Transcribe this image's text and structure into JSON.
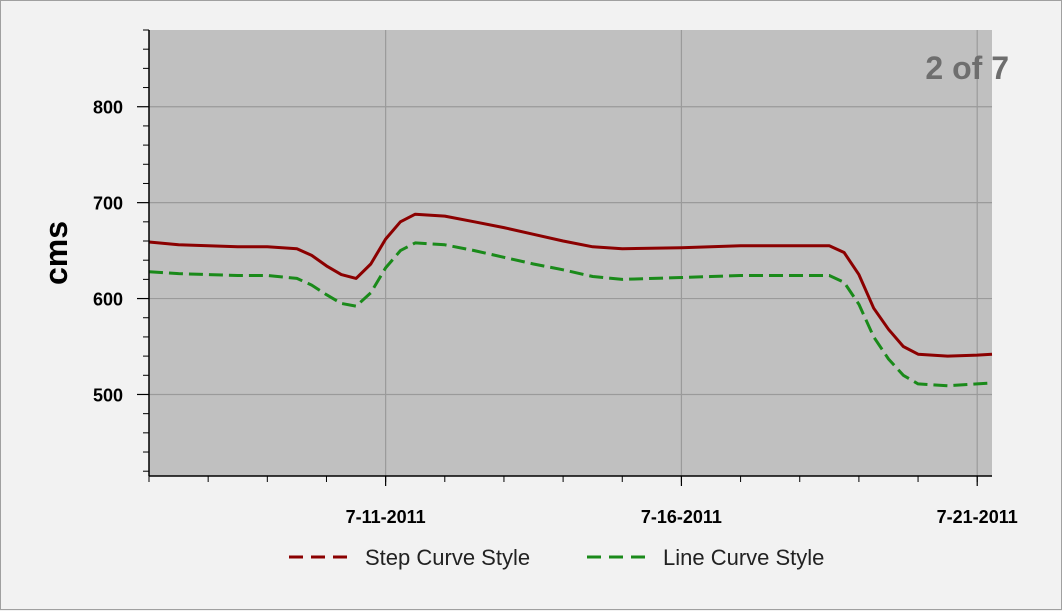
{
  "page_indicator": "2 of 7",
  "chart_data": {
    "type": "line",
    "title": "",
    "xlabel": "",
    "ylabel": "cms",
    "x_ticks": [
      "7-11-2011",
      "7-16-2011",
      "7-21-2011"
    ],
    "x_range": [
      "2011-07-07",
      "2011-07-21T06:00"
    ],
    "ylim": [
      415,
      880
    ],
    "y_ticks": [
      500,
      600,
      700,
      800
    ],
    "grid": true,
    "legend_position": "bottom",
    "series": [
      {
        "name": "Step Curve Style",
        "color": "#8b0000",
        "dash": "dashed-legend",
        "points": [
          [
            "2011-07-07",
            659
          ],
          [
            "2011-07-07T12:00",
            656
          ],
          [
            "2011-07-08",
            655
          ],
          [
            "2011-07-08T12:00",
            654
          ],
          [
            "2011-07-09",
            654
          ],
          [
            "2011-07-09T12:00",
            652
          ],
          [
            "2011-07-09T18:00",
            645
          ],
          [
            "2011-07-10",
            634
          ],
          [
            "2011-07-10T06:00",
            625
          ],
          [
            "2011-07-10T12:00",
            621
          ],
          [
            "2011-07-10T18:00",
            636
          ],
          [
            "2011-07-11",
            662
          ],
          [
            "2011-07-11T06:00",
            680
          ],
          [
            "2011-07-11T12:00",
            688
          ],
          [
            "2011-07-12",
            686
          ],
          [
            "2011-07-12T12:00",
            680
          ],
          [
            "2011-07-13",
            674
          ],
          [
            "2011-07-13T12:00",
            667
          ],
          [
            "2011-07-14",
            660
          ],
          [
            "2011-07-14T12:00",
            654
          ],
          [
            "2011-07-15",
            652
          ],
          [
            "2011-07-16",
            653
          ],
          [
            "2011-07-16T12:00",
            654
          ],
          [
            "2011-07-17",
            655
          ],
          [
            "2011-07-18",
            655
          ],
          [
            "2011-07-18T12:00",
            655
          ],
          [
            "2011-07-18T18:00",
            648
          ],
          [
            "2011-07-19",
            625
          ],
          [
            "2011-07-19T06:00",
            590
          ],
          [
            "2011-07-19T12:00",
            568
          ],
          [
            "2011-07-19T18:00",
            550
          ],
          [
            "2011-07-20",
            542
          ],
          [
            "2011-07-20T12:00",
            540
          ],
          [
            "2011-07-21",
            541
          ],
          [
            "2011-07-21T06:00",
            542
          ]
        ]
      },
      {
        "name": "Line Curve Style",
        "color": "#1a8a1a",
        "dash": "dashed",
        "points": [
          [
            "2011-07-07",
            628
          ],
          [
            "2011-07-07T12:00",
            626
          ],
          [
            "2011-07-08",
            625
          ],
          [
            "2011-07-08T12:00",
            624
          ],
          [
            "2011-07-09",
            624
          ],
          [
            "2011-07-09T12:00",
            621
          ],
          [
            "2011-07-09T18:00",
            614
          ],
          [
            "2011-07-10",
            604
          ],
          [
            "2011-07-10T06:00",
            595
          ],
          [
            "2011-07-10T12:00",
            592
          ],
          [
            "2011-07-10T18:00",
            606
          ],
          [
            "2011-07-11",
            632
          ],
          [
            "2011-07-11T06:00",
            650
          ],
          [
            "2011-07-11T12:00",
            658
          ],
          [
            "2011-07-12",
            656
          ],
          [
            "2011-07-12T12:00",
            650
          ],
          [
            "2011-07-13",
            643
          ],
          [
            "2011-07-13T12:00",
            636
          ],
          [
            "2011-07-14",
            630
          ],
          [
            "2011-07-14T12:00",
            623
          ],
          [
            "2011-07-15",
            620
          ],
          [
            "2011-07-16",
            622
          ],
          [
            "2011-07-16T12:00",
            623
          ],
          [
            "2011-07-17",
            624
          ],
          [
            "2011-07-18",
            624
          ],
          [
            "2011-07-18T12:00",
            624
          ],
          [
            "2011-07-18T18:00",
            617
          ],
          [
            "2011-07-19",
            594
          ],
          [
            "2011-07-19T06:00",
            560
          ],
          [
            "2011-07-19T12:00",
            537
          ],
          [
            "2011-07-19T18:00",
            520
          ],
          [
            "2011-07-20",
            511
          ],
          [
            "2011-07-20T12:00",
            509
          ],
          [
            "2011-07-21",
            511
          ],
          [
            "2011-07-21T06:00",
            512
          ]
        ]
      }
    ]
  }
}
